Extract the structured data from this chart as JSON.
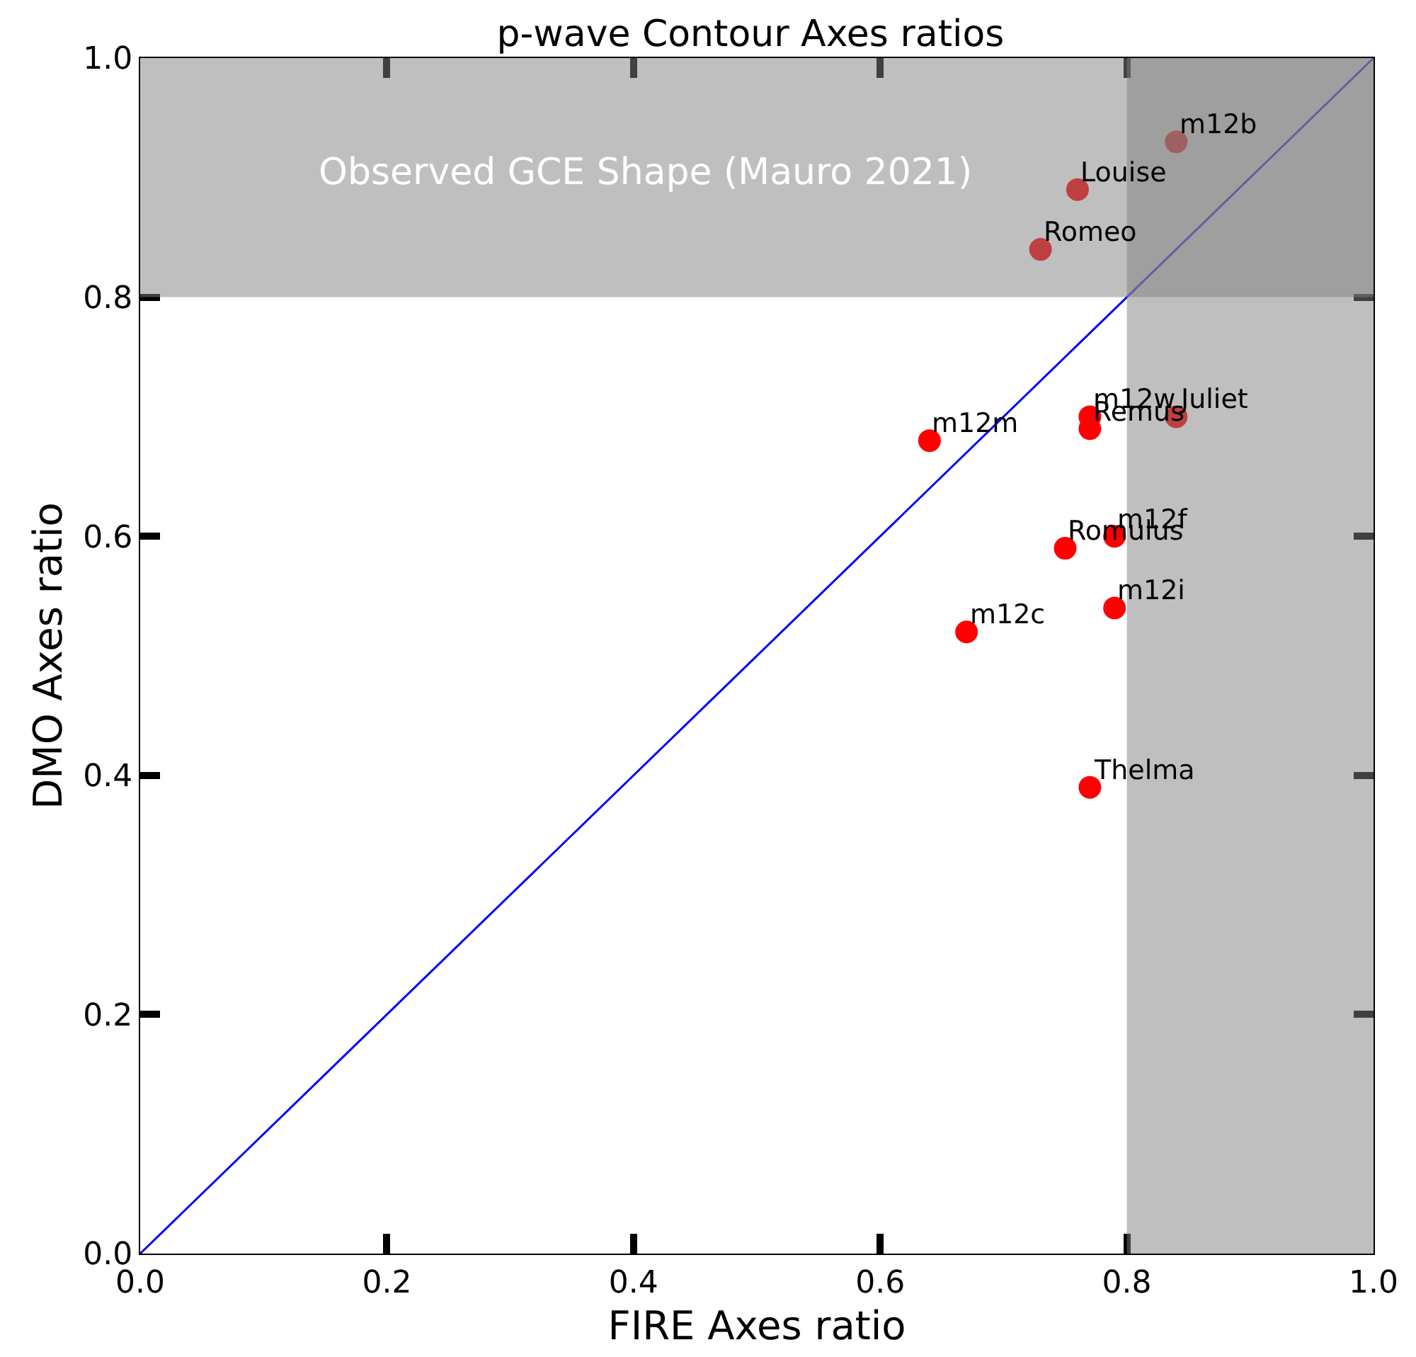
{
  "chart_data": {
    "type": "scatter",
    "title": "p-wave Contour Axes ratios",
    "xlabel": "FIRE Axes ratio",
    "ylabel": "DMO Axes ratio",
    "xlim": [
      0,
      1
    ],
    "ylim": [
      0,
      1
    ],
    "xticks": [
      {
        "value": 0,
        "label": "0.0"
      },
      {
        "value": 0.2,
        "label": "0.2"
      },
      {
        "value": 0.4,
        "label": "0.4"
      },
      {
        "value": 0.6,
        "label": "0.6"
      },
      {
        "value": 0.8,
        "label": "0.8"
      },
      {
        "value": 1,
        "label": "1.0"
      }
    ],
    "yticks": [
      {
        "value": 0,
        "label": "0.0"
      },
      {
        "value": 0.2,
        "label": "0.2"
      },
      {
        "value": 0.4,
        "label": "0.4"
      },
      {
        "value": 0.6,
        "label": "0.6"
      },
      {
        "value": 0.8,
        "label": "0.8"
      },
      {
        "value": 1,
        "label": "1.0"
      }
    ],
    "marker": "circle",
    "series": [
      {
        "color": "#ff0000",
        "x": [
          0.84,
          0.76,
          0.73,
          0.77,
          0.84,
          0.77,
          0.64,
          0.79,
          0.75,
          0.79,
          0.67,
          0.77
        ],
        "values": [
          0.93,
          0.89,
          0.84,
          0.7,
          0.7,
          0.69,
          0.68,
          0.6,
          0.59,
          0.54,
          0.52,
          0.39
        ]
      },
      {
        "type": "line",
        "color": "#0000ff",
        "x": [
          0,
          1
        ],
        "values": [
          0,
          1
        ],
        "marker": "none",
        "line_style": "solid"
      }
    ],
    "annotations": [
      {
        "text": "m12b",
        "x": 0.84,
        "y": 0.93
      },
      {
        "text": "Louise",
        "x": 0.76,
        "y": 0.89
      },
      {
        "text": "Romeo",
        "x": 0.73,
        "y": 0.84
      },
      {
        "text": "m12w",
        "x": 0.77,
        "y": 0.7
      },
      {
        "text": "Juliet",
        "x": 0.84,
        "y": 0.7
      },
      {
        "text": "Remus",
        "x": 0.77,
        "y": 0.69
      },
      {
        "text": "m12m",
        "x": 0.64,
        "y": 0.68
      },
      {
        "text": "m12f",
        "x": 0.79,
        "y": 0.6
      },
      {
        "text": "Romulus",
        "x": 0.75,
        "y": 0.59
      },
      {
        "text": "m12i",
        "x": 0.79,
        "y": 0.54
      },
      {
        "text": "m12c",
        "x": 0.67,
        "y": 0.52
      },
      {
        "text": "Thelma",
        "x": 0.77,
        "y": 0.39
      }
    ],
    "bands": [
      {
        "axis": "y",
        "from": 0.8,
        "to": 1.0,
        "label": "Observed GCE Shape (Mauro 2021)",
        "color": "#808080"
      },
      {
        "axis": "x",
        "from": 0.8,
        "to": 1.0,
        "color": "#808080"
      }
    ]
  }
}
